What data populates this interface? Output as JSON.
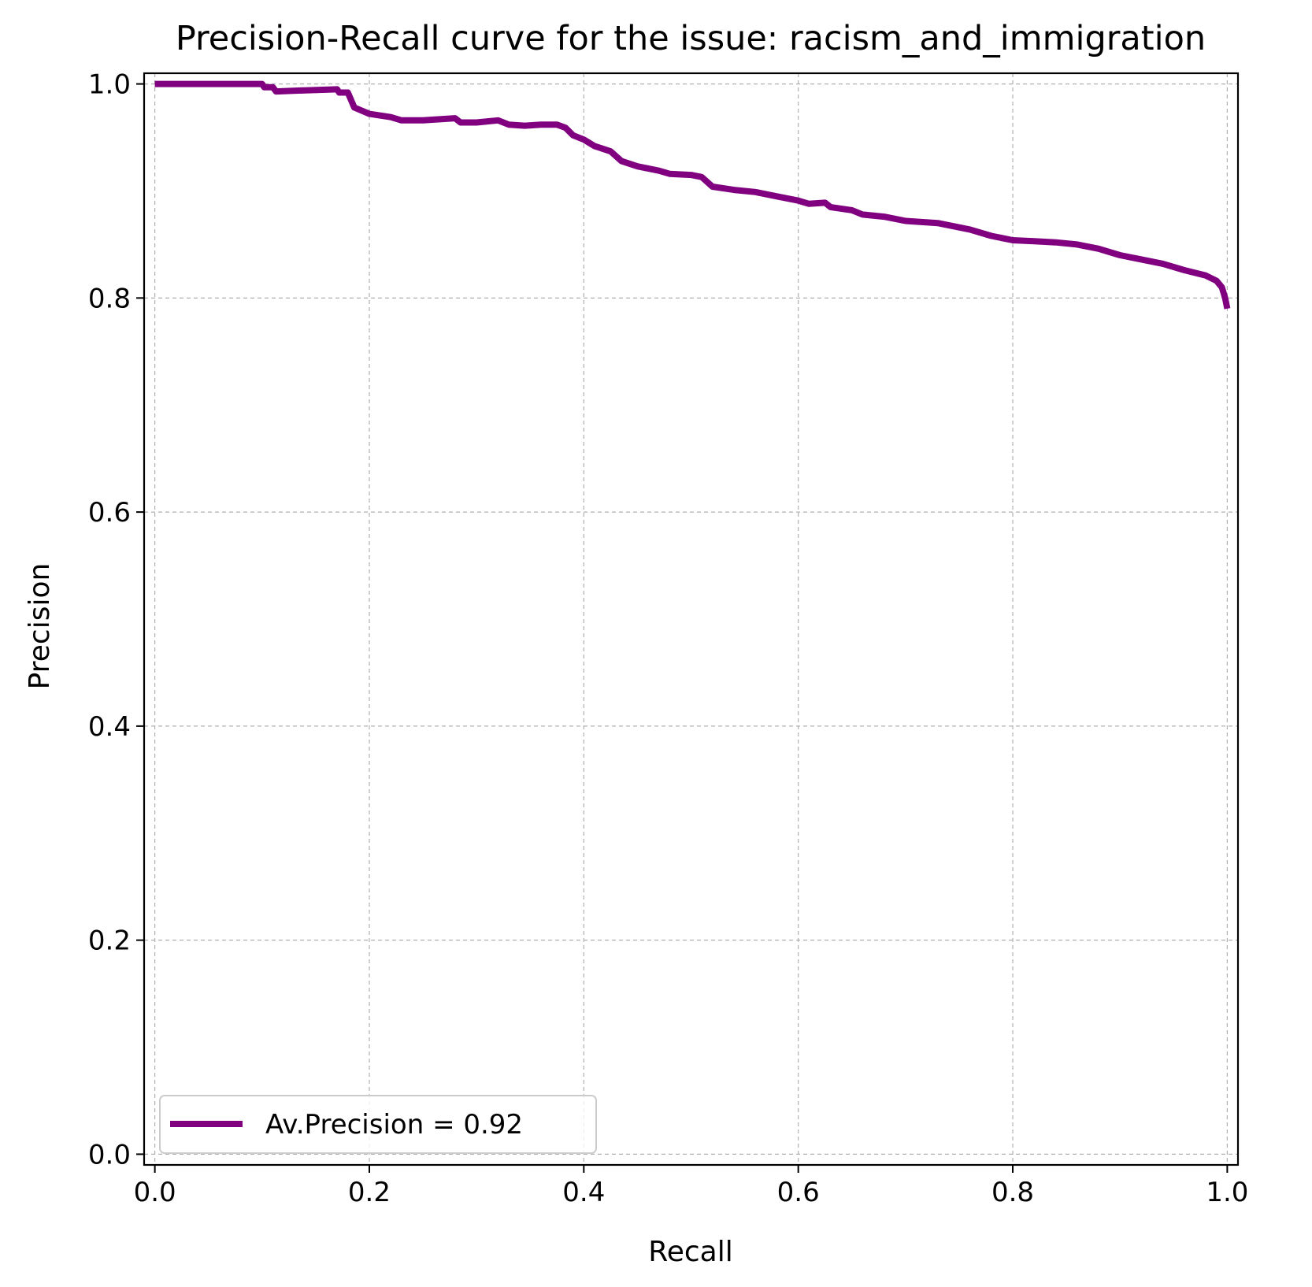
{
  "chart_data": {
    "type": "line",
    "title": "Precision-Recall curve for the issue: racism_and_immigration",
    "xlabel": "Recall",
    "ylabel": "Precision",
    "xlim": [
      -0.01,
      1.01
    ],
    "ylim": [
      -0.01,
      1.01
    ],
    "grid": true,
    "legend_placement": "lower-left",
    "x_ticks": [
      {
        "value": 0.0,
        "label": "0.0"
      },
      {
        "value": 0.2,
        "label": "0.2"
      },
      {
        "value": 0.4,
        "label": "0.4"
      },
      {
        "value": 0.6,
        "label": "0.6"
      },
      {
        "value": 0.8,
        "label": "0.8"
      },
      {
        "value": 1.0,
        "label": "1.0"
      }
    ],
    "y_ticks": [
      {
        "value": 0.0,
        "label": "0.0"
      },
      {
        "value": 0.2,
        "label": "0.2"
      },
      {
        "value": 0.4,
        "label": "0.4"
      },
      {
        "value": 0.6,
        "label": "0.6"
      },
      {
        "value": 0.8,
        "label": "0.8"
      },
      {
        "value": 1.0,
        "label": "1.0"
      }
    ],
    "series": [
      {
        "name": "Av.Precision = 0.92",
        "color": "#800080",
        "points": [
          [
            0.0,
            1.0
          ],
          [
            0.1,
            1.0
          ],
          [
            0.102,
            0.997
          ],
          [
            0.11,
            0.997
          ],
          [
            0.113,
            0.993
          ],
          [
            0.14,
            0.994
          ],
          [
            0.17,
            0.995
          ],
          [
            0.172,
            0.992
          ],
          [
            0.18,
            0.992
          ],
          [
            0.183,
            0.985
          ],
          [
            0.186,
            0.978
          ],
          [
            0.2,
            0.972
          ],
          [
            0.22,
            0.969
          ],
          [
            0.23,
            0.966
          ],
          [
            0.25,
            0.966
          ],
          [
            0.28,
            0.968
          ],
          [
            0.285,
            0.964
          ],
          [
            0.3,
            0.964
          ],
          [
            0.32,
            0.966
          ],
          [
            0.33,
            0.962
          ],
          [
            0.345,
            0.961
          ],
          [
            0.36,
            0.962
          ],
          [
            0.375,
            0.962
          ],
          [
            0.383,
            0.959
          ],
          [
            0.39,
            0.952
          ],
          [
            0.4,
            0.948
          ],
          [
            0.41,
            0.942
          ],
          [
            0.425,
            0.937
          ],
          [
            0.435,
            0.928
          ],
          [
            0.45,
            0.923
          ],
          [
            0.47,
            0.919
          ],
          [
            0.48,
            0.916
          ],
          [
            0.5,
            0.915
          ],
          [
            0.51,
            0.913
          ],
          [
            0.52,
            0.904
          ],
          [
            0.54,
            0.901
          ],
          [
            0.56,
            0.899
          ],
          [
            0.58,
            0.895
          ],
          [
            0.6,
            0.891
          ],
          [
            0.61,
            0.888
          ],
          [
            0.625,
            0.889
          ],
          [
            0.63,
            0.885
          ],
          [
            0.65,
            0.882
          ],
          [
            0.66,
            0.878
          ],
          [
            0.68,
            0.876
          ],
          [
            0.7,
            0.872
          ],
          [
            0.73,
            0.87
          ],
          [
            0.76,
            0.864
          ],
          [
            0.78,
            0.858
          ],
          [
            0.8,
            0.854
          ],
          [
            0.82,
            0.853
          ],
          [
            0.84,
            0.852
          ],
          [
            0.86,
            0.85
          ],
          [
            0.88,
            0.846
          ],
          [
            0.9,
            0.84
          ],
          [
            0.92,
            0.836
          ],
          [
            0.94,
            0.832
          ],
          [
            0.96,
            0.826
          ],
          [
            0.98,
            0.821
          ],
          [
            0.99,
            0.816
          ],
          [
            0.995,
            0.81
          ],
          [
            0.998,
            0.8
          ],
          [
            1.0,
            0.79
          ]
        ]
      }
    ]
  }
}
